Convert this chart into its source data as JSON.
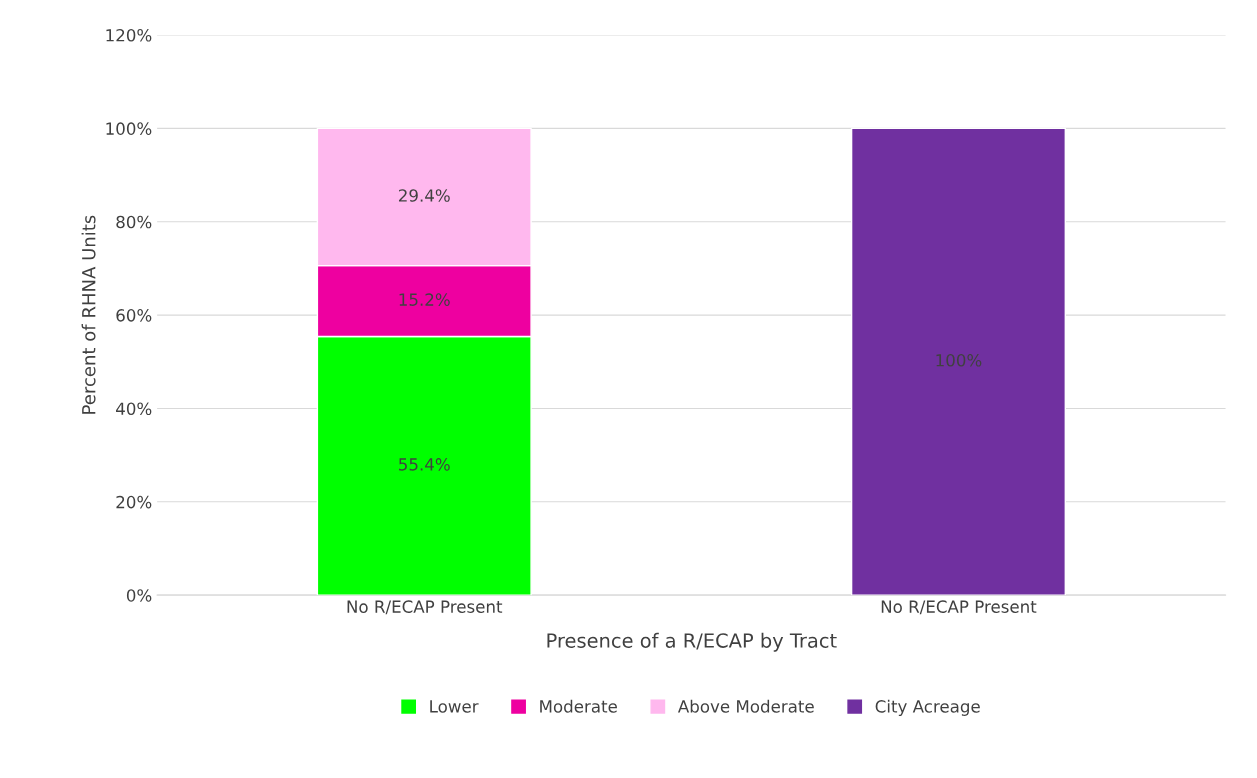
{
  "chart_data": {
    "type": "bar",
    "stacked": true,
    "xlabel": "Presence of a R/ECAP by Tract",
    "ylabel": "Percent of RHNA Units",
    "categories": [
      "No R/ECAP Present",
      "No R/ECAP Present"
    ],
    "series": [
      {
        "name": "Lower",
        "color": "#00ff00",
        "values": [
          55.4,
          null
        ],
        "value_labels": [
          "55.4%",
          null
        ]
      },
      {
        "name": "Moderate",
        "color": "#ee00a0",
        "values": [
          15.2,
          null
        ],
        "value_labels": [
          "15.2%",
          null
        ]
      },
      {
        "name": "Above Moderate",
        "color": "#ffb8ee",
        "values": [
          29.4,
          null
        ],
        "value_labels": [
          "29.4%",
          null
        ]
      },
      {
        "name": "City Acreage",
        "color": "#7030a0",
        "values": [
          null,
          100
        ],
        "value_labels": [
          null,
          "100%"
        ]
      }
    ],
    "ylim": [
      0,
      120
    ],
    "yticks": [
      {
        "value": 0,
        "label": "0%"
      },
      {
        "value": 20,
        "label": "20%"
      },
      {
        "value": 40,
        "label": "40%"
      },
      {
        "value": 60,
        "label": "60%"
      },
      {
        "value": 80,
        "label": "80%"
      },
      {
        "value": 100,
        "label": "100%"
      },
      {
        "value": 120,
        "label": "120%"
      }
    ],
    "grid": "y",
    "legend": "bottom"
  }
}
